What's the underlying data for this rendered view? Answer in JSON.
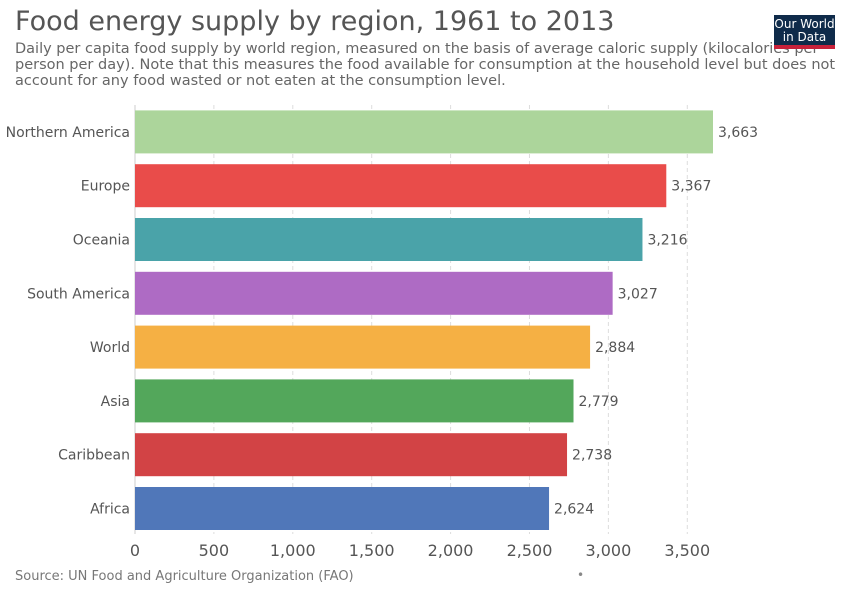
{
  "header": {
    "title": "Food energy supply by region, 1961 to 2013",
    "subtitle": "Daily per capita food supply by world region, measured on the basis of average caloric supply (kilocalories per person per day). Note that this measures the food available for consumption at the household level but does not account for any food wasted or not eaten at the consumption level.",
    "logo_line1": "Our World",
    "logo_line2": "in Data"
  },
  "footer": {
    "source": "Source: UN Food and Agriculture Organization (FAO)",
    "dot": "•"
  },
  "chart_data": {
    "type": "bar",
    "orientation": "horizontal",
    "categories": [
      "Northern America",
      "Europe",
      "Oceania",
      "South America",
      "World",
      "Asia",
      "Caribbean",
      "Africa"
    ],
    "values": [
      3663,
      3367,
      3216,
      3027,
      2884,
      2779,
      2738,
      2624
    ],
    "value_labels": [
      "3,663",
      "3,367",
      "3,216",
      "3,027",
      "2,884",
      "2,779",
      "2,738",
      "2,624"
    ],
    "colors": [
      "#acd59b",
      "#e94c4a",
      "#4aa3a9",
      "#ae6bc4",
      "#f5b044",
      "#53a75b",
      "#d24345",
      "#5077b9"
    ],
    "ticks": [
      0,
      500,
      1000,
      1500,
      2000,
      2500,
      3000,
      3500
    ],
    "tick_labels": [
      "0",
      "500",
      "1,000",
      "1,500",
      "2,000",
      "2,500",
      "3,000",
      "3,500"
    ],
    "xlim": [
      0,
      3663
    ],
    "grid": true
  }
}
